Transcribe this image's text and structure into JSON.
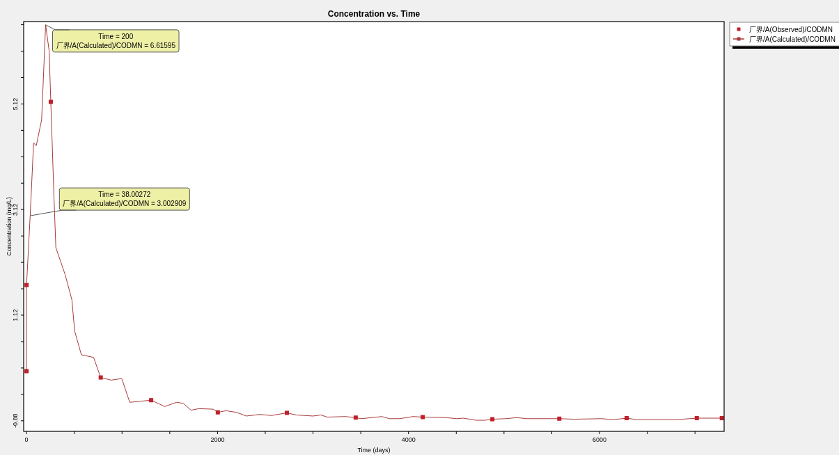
{
  "chart_data": {
    "type": "line",
    "title": "Concentration vs. Time",
    "xlabel": "Time (days)",
    "ylabel": "Concentration (mg/L)",
    "xlim": [
      -30,
      7305
    ],
    "ylim": [
      -1.08,
      6.68
    ],
    "xticks": [
      0,
      {
        "value": 500,
        "label": null
      },
      {
        "value": 1000,
        "label": null
      },
      {
        "value": 1500,
        "label": null
      },
      2000,
      {
        "value": 2500,
        "label": null
      },
      {
        "value": 3000,
        "label": null
      },
      {
        "value": 3500,
        "label": null
      },
      4000,
      {
        "value": 4500,
        "label": null
      },
      {
        "value": 5000,
        "label": null
      },
      {
        "value": 5500,
        "label": null
      },
      6000,
      {
        "value": 6500,
        "label": null
      },
      {
        "value": 7000,
        "label": null
      }
    ],
    "yticks": [
      -0.88,
      {
        "value": -0.38,
        "label": null
      },
      {
        "value": 0.12,
        "label": null
      },
      {
        "value": 0.62,
        "label": null
      },
      1.12,
      {
        "value": 1.62,
        "label": null
      },
      {
        "value": 2.12,
        "label": null
      },
      {
        "value": 2.62,
        "label": null
      },
      3.12,
      {
        "value": 3.62,
        "label": null
      },
      {
        "value": 4.12,
        "label": null
      },
      {
        "value": 4.62,
        "label": null
      },
      5.12,
      {
        "value": 5.62,
        "label": null
      },
      {
        "value": 6.12,
        "label": null
      },
      {
        "value": 6.62,
        "label": null
      }
    ],
    "legend": "right",
    "grid": false,
    "series": [
      {
        "name": "厂界/A(Observed)/CODMN",
        "type": "scatter",
        "marker": "square",
        "color": "#c0202a",
        "x": [
          0
        ],
        "values": [
          1.69
        ]
      },
      {
        "name": "厂界/A(Calculated)/CODMN",
        "color": "#a83a3a",
        "x": [
          0,
          0,
          38.00272,
          74,
          102,
          158,
          200,
          237,
          254,
          288,
          307,
          404,
          475,
          504,
          574,
          702,
          777,
          885,
          997,
          1081,
          1305,
          1447,
          1571,
          1642,
          1723,
          1804,
          1954,
          2003,
          2090,
          2199,
          2302,
          2443,
          2565,
          2726,
          2823,
          3000,
          3082,
          3149,
          3340,
          3447,
          3503,
          3721,
          3802,
          3908,
          4046,
          4149,
          4394,
          4504,
          4572,
          4709,
          4801,
          4878,
          5021,
          5131,
          5241,
          5579,
          5731,
          6028,
          6142,
          6284,
          6397,
          6794,
          7019,
          7281
        ],
        "values": [
          0.06,
          1.69,
          3.0,
          4.38,
          4.33,
          4.82,
          6.62,
          6.12,
          5.16,
          3.32,
          2.4,
          1.89,
          1.41,
          0.82,
          0.37,
          0.32,
          -0.06,
          -0.11,
          -0.08,
          -0.53,
          -0.49,
          -0.61,
          -0.53,
          -0.55,
          -0.68,
          -0.65,
          -0.66,
          -0.72,
          -0.69,
          -0.72,
          -0.79,
          -0.76,
          -0.78,
          -0.73,
          -0.77,
          -0.79,
          -0.77,
          -0.81,
          -0.8,
          -0.82,
          -0.84,
          -0.8,
          -0.84,
          -0.84,
          -0.8,
          -0.81,
          -0.82,
          -0.84,
          -0.83,
          -0.87,
          -0.87,
          -0.85,
          -0.84,
          -0.82,
          -0.84,
          -0.84,
          -0.85,
          -0.84,
          -0.86,
          -0.83,
          -0.86,
          -0.86,
          -0.83,
          -0.83
        ]
      },
      {
        "type": "scatter",
        "marker": "square",
        "color": "#c0202a",
        "x": [
          0,
          254,
          777,
          1305,
          2003,
          2726,
          3447,
          4149,
          4878,
          5579,
          6284,
          7019,
          7281
        ],
        "values": [
          0.06,
          5.16,
          -0.06,
          -0.49,
          -0.72,
          -0.73,
          -0.82,
          -0.81,
          -0.85,
          -0.84,
          -0.83,
          -0.83,
          -0.83
        ]
      }
    ],
    "annotations": [
      {
        "text": "Time = 200\n厂界/A(Calculated)/CODMN = 6.61595",
        "x": 200,
        "y": 6.61595
      },
      {
        "text": "Time = 38.00272\n厂界/A(Calculated)/CODMN = 3.002909",
        "x": 38.00272,
        "y": 3.002909
      }
    ]
  }
}
